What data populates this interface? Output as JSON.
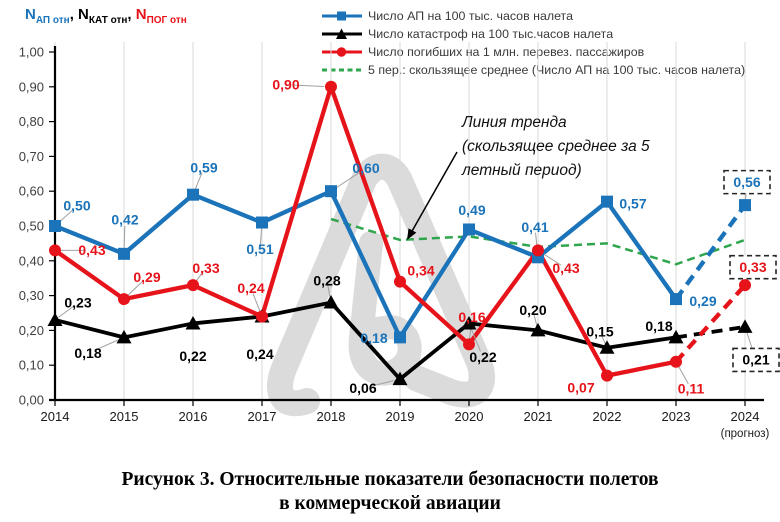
{
  "notation": {
    "parts": [
      {
        "base": "N",
        "sub": "АП отн",
        "color": "#1B73B9"
      },
      {
        "base": "N",
        "sub": "КАТ отн",
        "color": "#000000"
      },
      {
        "base": "N",
        "sub": "ПОГ отн",
        "color": "#E7131A"
      }
    ],
    "separator": ", "
  },
  "legend": [
    {
      "label": "Число АП на 100 тыс. часов налета",
      "color": "#1B73B9",
      "marker": "square",
      "dashed": false
    },
    {
      "label": "Число катастроф на 100 тыс.часов налета",
      "color": "#000000",
      "marker": "triangle",
      "dashed": false
    },
    {
      "label": "Число погибших на 1 млн. перевез. пассажиров",
      "color": "#E7131A",
      "marker": "circle",
      "dashed": false
    },
    {
      "label": "5 пер.: скользящее среднее (Число АП на 100 тыс. часов налета)",
      "color": "#2FA64D",
      "marker": "none",
      "dashed": true
    }
  ],
  "annotation": {
    "lines": [
      "Линия тренда",
      "(скользящее среднее за 5",
      "летный период)"
    ]
  },
  "caption": {
    "line1": "Рисунок 3. Относительные показатели безопасности полетов",
    "line2": "в коммерческой авиации"
  },
  "chart_data": {
    "type": "line",
    "categories": [
      "2014",
      "2015",
      "2016",
      "2017",
      "2018",
      "2019",
      "2020",
      "2021",
      "2022",
      "2023",
      "2024"
    ],
    "forecast_category": "2024",
    "forecast_note": "(прогноз)",
    "ylim": [
      0,
      1
    ],
    "ytick_step": 0.1,
    "decimal_comma": true,
    "grid": "vertical",
    "legend_position": "top",
    "series": [
      {
        "name": "Число АП на 100 тыс. часов налета",
        "color": "#1B73B9",
        "marker": "square",
        "values": [
          0.5,
          0.42,
          0.59,
          0.51,
          0.6,
          0.18,
          0.49,
          0.41,
          0.57,
          0.29,
          0.56
        ],
        "last_is_forecast": true
      },
      {
        "name": "Число катастроф на 100 тыс.часов налета",
        "color": "#000000",
        "marker": "triangle",
        "values": [
          0.23,
          0.18,
          0.22,
          0.24,
          0.28,
          0.06,
          0.22,
          0.2,
          0.15,
          0.18,
          0.21
        ],
        "last_is_forecast": true
      },
      {
        "name": "Число погибших на 1 млн. перевез. пассажиров",
        "color": "#E7131A",
        "marker": "circle",
        "values": [
          0.43,
          0.29,
          0.33,
          0.24,
          0.9,
          0.34,
          0.16,
          0.43,
          0.07,
          0.11,
          0.33
        ],
        "last_is_forecast": true
      },
      {
        "name": "5 пер.: скользящее среднее (Число АП на 100 тыс. часов налета)",
        "color": "#2FA64D",
        "marker": "none",
        "dashed": true,
        "no_labels": true,
        "values": [
          null,
          null,
          null,
          null,
          0.52,
          0.46,
          0.47,
          0.44,
          0.45,
          0.39,
          0.46
        ]
      }
    ]
  }
}
